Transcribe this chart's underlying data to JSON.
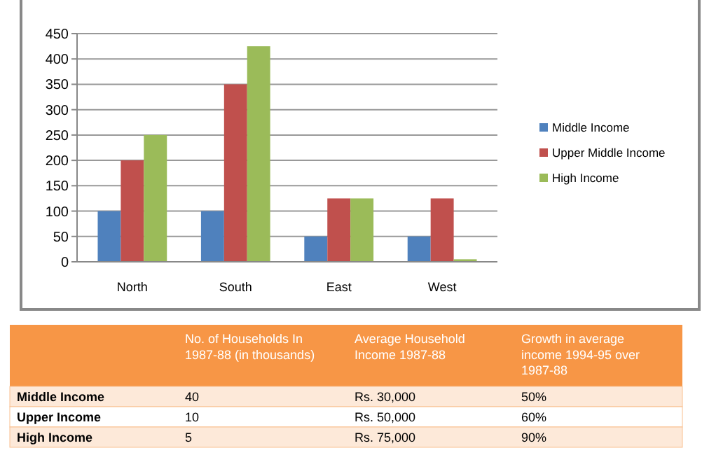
{
  "chart_data": [
    {
      "type": "bar",
      "categories": [
        "North",
        "South",
        "East",
        "West"
      ],
      "series": [
        {
          "name": "Middle Income",
          "color": "#4f81bd",
          "values": [
            100,
            100,
            50,
            50
          ]
        },
        {
          "name": "Upper Middle Income",
          "color": "#c0504d",
          "values": [
            200,
            350,
            125,
            125
          ]
        },
        {
          "name": "High Income",
          "color": "#9bbb59",
          "values": [
            250,
            425,
            125,
            5
          ]
        }
      ],
      "ylim": [
        0,
        450
      ],
      "yticks": [
        0,
        50,
        100,
        150,
        200,
        250,
        300,
        350,
        400,
        450
      ],
      "grid": "y",
      "legend": "right"
    },
    {
      "type": "other",
      "annotations": [
        "No. of Households In 1987-88 (in thousands)",
        "Average Household Income 1987-88",
        "Growth in average income 1994-95 over 1987-88",
        "Middle Income",
        "40",
        "Rs. 30,000",
        "50%",
        "Upper Income",
        "10",
        "Rs. 50,000",
        "60%",
        "High Income",
        "5",
        "Rs. 75,000",
        "90%"
      ]
    }
  ]
}
